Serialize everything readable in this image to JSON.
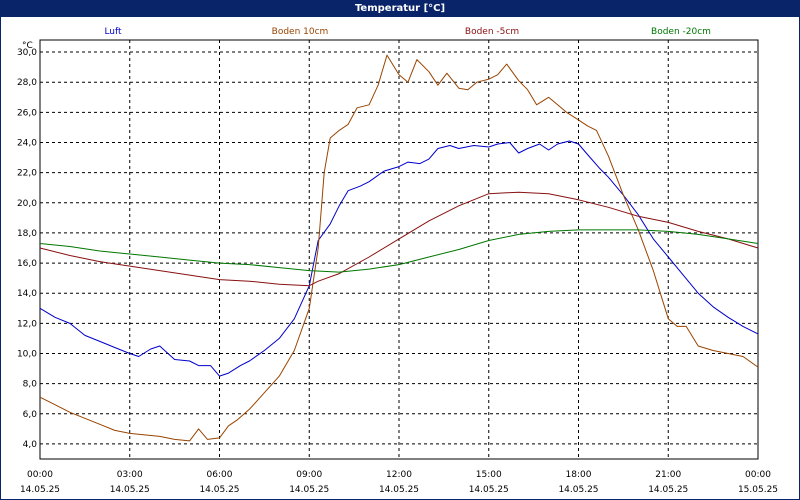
{
  "window": {
    "title": "Temperatur [°C]"
  },
  "colors": {
    "titlebar": "#0a246a",
    "grid": "#000000"
  },
  "chart_data": {
    "type": "line",
    "title": "Temperatur [°C]",
    "ylabel": "°C",
    "ylim": [
      3,
      30.8
    ],
    "yticks": [
      "30,0",
      "28,0",
      "26,0",
      "24,0",
      "22,0",
      "20,0",
      "18,0",
      "16,0",
      "14,0",
      "12,0",
      "10,0",
      "8,0",
      "6,0",
      "4,0"
    ],
    "ytick_values": [
      30,
      28,
      26,
      24,
      22,
      20,
      18,
      16,
      14,
      12,
      10,
      8,
      6,
      4
    ],
    "xlim": [
      0,
      24
    ],
    "xtick_values": [
      0,
      3,
      6,
      9,
      12,
      15,
      18,
      21,
      24
    ],
    "xticks_time": [
      "00:00",
      "03:00",
      "06:00",
      "09:00",
      "12:00",
      "15:00",
      "18:00",
      "21:00",
      "00:00"
    ],
    "xticks_date": [
      "14.05.25",
      "14.05.25",
      "14.05.25",
      "14.05.25",
      "14.05.25",
      "14.05.25",
      "14.05.25",
      "14.05.25",
      "15.05.25"
    ],
    "grid": true,
    "legend_position": "top",
    "series": [
      {
        "name": "Luft",
        "color": "#0000cc",
        "x": [
          0,
          0.5,
          1,
          1.5,
          2,
          2.5,
          3,
          3.3,
          3.7,
          4,
          4.5,
          5,
          5.3,
          5.7,
          6,
          6.3,
          6.7,
          7,
          7.5,
          8,
          8.5,
          9,
          9.3,
          9.7,
          10,
          10.3,
          10.7,
          11,
          11.5,
          12,
          12.3,
          12.7,
          13,
          13.3,
          13.7,
          14,
          14.5,
          15,
          15.3,
          15.7,
          16,
          16.3,
          16.7,
          17,
          17.3,
          17.7,
          18,
          18.3,
          18.7,
          19,
          19.5,
          20,
          20.5,
          21,
          21.5,
          22,
          22.5,
          23,
          23.5,
          24
        ],
        "y": [
          13,
          12.4,
          12,
          11.2,
          10.8,
          10.4,
          10,
          9.8,
          10.3,
          10.5,
          9.6,
          9.5,
          9.2,
          9.2,
          8.5,
          8.7,
          9.2,
          9.5,
          10.2,
          11,
          12.3,
          14.5,
          17.5,
          18.6,
          19.8,
          20.8,
          21.1,
          21.4,
          22.1,
          22.4,
          22.7,
          22.6,
          22.9,
          23.6,
          23.8,
          23.6,
          23.8,
          23.7,
          23.9,
          24,
          23.3,
          23.6,
          23.9,
          23.5,
          23.9,
          24.1,
          23.9,
          23.2,
          22.3,
          21.7,
          20.5,
          19.2,
          17.6,
          16.4,
          15.2,
          14,
          13.1,
          12.4,
          11.8,
          11.3
        ]
      },
      {
        "name": "Boden 10cm",
        "color": "#994400",
        "x": [
          0,
          0.5,
          1,
          1.5,
          2,
          2.5,
          3,
          3.5,
          4,
          4.5,
          5,
          5.3,
          5.6,
          6,
          6.3,
          6.6,
          7,
          7.5,
          8,
          8.5,
          9,
          9.3,
          9.5,
          9.7,
          10,
          10.3,
          10.6,
          11,
          11.3,
          11.6,
          12,
          12.3,
          12.6,
          13,
          13.3,
          13.6,
          14,
          14.3,
          14.6,
          15,
          15.3,
          15.6,
          16,
          16.3,
          16.6,
          17,
          17.3,
          17.6,
          18,
          18.3,
          18.6,
          19,
          19.5,
          20,
          20.5,
          21,
          21.3,
          21.6,
          22,
          22.5,
          23,
          23.5,
          24
        ],
        "y": [
          7.1,
          6.6,
          6.1,
          5.7,
          5.3,
          4.9,
          4.7,
          4.6,
          4.5,
          4.3,
          4.2,
          5,
          4.3,
          4.4,
          5.2,
          5.6,
          6.3,
          7.4,
          8.5,
          10.2,
          13,
          17,
          22,
          24.3,
          24.8,
          25.2,
          26.3,
          26.5,
          27.8,
          29.8,
          28.5,
          28,
          29.5,
          28.7,
          27.8,
          28.6,
          27.6,
          27.5,
          28,
          28.2,
          28.5,
          29.2,
          28.1,
          27.5,
          26.5,
          27,
          26.5,
          26,
          25.5,
          25.1,
          24.8,
          23.1,
          20.5,
          18.2,
          15.5,
          12.3,
          11.8,
          11.8,
          10.5,
          10.2,
          10,
          9.8,
          9.1
        ]
      },
      {
        "name": "Boden -5cm",
        "color": "#881111",
        "x": [
          0,
          1,
          2,
          3,
          4,
          5,
          6,
          7,
          8,
          9,
          9.3,
          10,
          11,
          12,
          13,
          14,
          15,
          16,
          17,
          18,
          19,
          20,
          21,
          22,
          23,
          24
        ],
        "y": [
          17,
          16.5,
          16.1,
          15.8,
          15.5,
          15.2,
          14.9,
          14.8,
          14.6,
          14.5,
          14.8,
          15.3,
          16.4,
          17.6,
          18.8,
          19.8,
          20.6,
          20.7,
          20.6,
          20.2,
          19.7,
          19.1,
          18.7,
          18.1,
          17.6,
          17
        ]
      },
      {
        "name": "Boden -20cm",
        "color": "#007700",
        "x": [
          0,
          1,
          2,
          3,
          4,
          5,
          6,
          7,
          8,
          9,
          10,
          11,
          12,
          13,
          14,
          15,
          16,
          17,
          18,
          19,
          20,
          21,
          22,
          23,
          24
        ],
        "y": [
          17.3,
          17.1,
          16.8,
          16.6,
          16.4,
          16.2,
          16,
          15.9,
          15.7,
          15.5,
          15.4,
          15.6,
          15.9,
          16.4,
          16.9,
          17.5,
          17.9,
          18.1,
          18.2,
          18.2,
          18.2,
          18.1,
          17.9,
          17.6,
          17.3
        ]
      }
    ]
  }
}
